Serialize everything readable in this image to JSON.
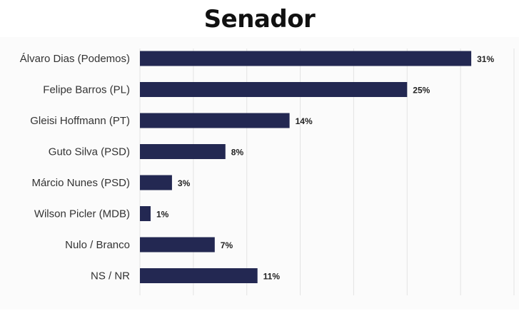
{
  "chart_data": {
    "type": "bar",
    "orientation": "horizontal",
    "title": "Senador",
    "categories": [
      "Álvaro Dias (Podemos)",
      "Felipe Barros (PL)",
      "Gleisi Hoffmann (PT)",
      "Guto Silva (PSD)",
      "Márcio Nunes (PSD)",
      "Wilson Picler (MDB)",
      "Nulo / Branco",
      "NS / NR"
    ],
    "values": [
      31,
      25,
      14,
      8,
      3,
      1,
      7,
      11
    ],
    "value_labels": [
      "31%",
      "25%",
      "14%",
      "8%",
      "3%",
      "1%",
      "7%",
      "11%"
    ],
    "xlim": [
      0,
      35
    ],
    "grid": true,
    "bar_color": "#232852"
  }
}
